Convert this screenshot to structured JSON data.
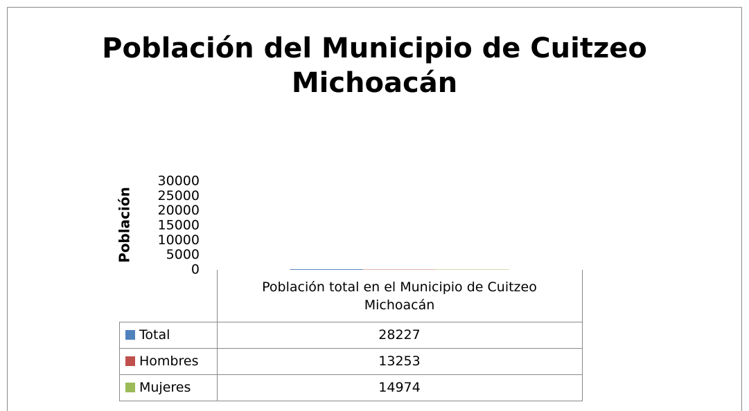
{
  "chart_data": {
    "type": "bar",
    "title": "Población del Municipio de Cuitzeo Michoacán",
    "y_label": "Población",
    "categories": [
      "Población total en el Municipio de Cuitzeo Michoacán"
    ],
    "series": [
      {
        "name": "Total",
        "color": "#4f81bd",
        "values": [
          28227
        ]
      },
      {
        "name": "Hombres",
        "color": "#c0504d",
        "values": [
          13253
        ]
      },
      {
        "name": "Mujeres",
        "color": "#9bbb59",
        "values": [
          14974
        ]
      }
    ],
    "ylim": [
      0,
      30000
    ],
    "yticks": [
      0,
      5000,
      10000,
      15000,
      20000,
      25000,
      30000
    ],
    "data_table": true
  }
}
